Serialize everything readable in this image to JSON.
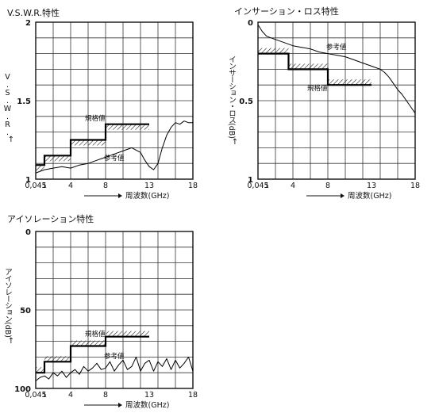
{
  "chart_data": [
    {
      "id": "vswr",
      "type": "line",
      "title": "V.S.W.R.特性",
      "ylabel": "V.S.W.R.",
      "xlabel": "周波数(GHz)",
      "x_ticks": [
        "0.045",
        "1",
        "4",
        "8",
        "13",
        "18"
      ],
      "y_ticks": [
        "2",
        "1.5",
        "1"
      ],
      "ylim": [
        1,
        2
      ],
      "xlim": [
        0.045,
        18
      ],
      "annotations": [
        "規格値",
        "参考値"
      ],
      "series": [
        {
          "name": "規格値",
          "x": [
            0.045,
            1,
            1,
            4,
            4,
            8,
            8,
            13
          ],
          "y": [
            1.09,
            1.09,
            1.15,
            1.15,
            1.25,
            1.25,
            1.35,
            1.35
          ]
        },
        {
          "name": "参考値",
          "x": [
            0.045,
            0.5,
            1,
            2,
            3,
            4,
            5,
            6,
            7,
            8,
            9,
            10,
            11,
            12,
            12.5,
            13,
            13.5,
            14,
            14.5,
            15,
            15.5,
            16,
            16.5,
            17,
            17.5,
            18
          ],
          "y": [
            1.04,
            1.05,
            1.06,
            1.07,
            1.08,
            1.07,
            1.09,
            1.1,
            1.12,
            1.14,
            1.16,
            1.18,
            1.2,
            1.17,
            1.12,
            1.08,
            1.06,
            1.1,
            1.2,
            1.28,
            1.33,
            1.36,
            1.35,
            1.37,
            1.36,
            1.36
          ]
        }
      ]
    },
    {
      "id": "insertion-loss",
      "type": "line",
      "title": "インサーション・ロス特性",
      "ylabel": "インサーション・ロス",
      "yunit": "(dB)",
      "xlabel": "周波数(GHz)",
      "x_ticks": [
        "0.045",
        "1",
        "4",
        "8",
        "13",
        "18"
      ],
      "y_ticks": [
        "0",
        "0.5",
        "1"
      ],
      "ylim": [
        0,
        1
      ],
      "xlim": [
        0.045,
        18
      ],
      "annotations": [
        "参考値",
        "規格値"
      ],
      "series": [
        {
          "name": "規格値",
          "x": [
            0.045,
            3.5,
            3.5,
            8,
            8,
            13
          ],
          "y": [
            0.2,
            0.2,
            0.3,
            0.3,
            0.4,
            0.4
          ]
        },
        {
          "name": "参考値",
          "x": [
            0.045,
            0.5,
            1,
            2,
            3,
            4,
            5,
            6,
            7,
            8,
            9,
            10,
            11,
            12,
            13,
            14,
            14.5,
            15,
            15.5,
            16,
            16.5,
            17,
            17.5,
            18
          ],
          "y": [
            0.02,
            0.06,
            0.09,
            0.11,
            0.13,
            0.15,
            0.16,
            0.17,
            0.19,
            0.2,
            0.21,
            0.22,
            0.24,
            0.26,
            0.28,
            0.3,
            0.32,
            0.35,
            0.39,
            0.43,
            0.46,
            0.5,
            0.54,
            0.58
          ]
        }
      ]
    },
    {
      "id": "isolation",
      "type": "line",
      "title": "アイソレーション特性",
      "ylabel": "アイソレーション",
      "yunit": "(dB)",
      "xlabel": "周波数(GHz)",
      "x_ticks": [
        "0.045",
        "1",
        "4",
        "8",
        "13",
        "18"
      ],
      "y_ticks": [
        "0",
        "50",
        "100"
      ],
      "ylim": [
        0,
        100
      ],
      "xlim": [
        0.045,
        18
      ],
      "annotations": [
        "規格値",
        "参考値"
      ],
      "series": [
        {
          "name": "規格値",
          "x": [
            0.045,
            1,
            1,
            4,
            4,
            8,
            8,
            13
          ],
          "y": [
            90,
            90,
            83,
            83,
            73,
            73,
            67,
            67
          ]
        },
        {
          "name": "参考値",
          "x": [
            0.045,
            0.5,
            1,
            1.5,
            2,
            2.5,
            3,
            3.5,
            4,
            4.5,
            5,
            5.5,
            6,
            6.5,
            7,
            7.5,
            8,
            8.5,
            9,
            9.5,
            10,
            10.5,
            11,
            11.5,
            12,
            12.5,
            13,
            13.5,
            14,
            14.5,
            15,
            15.5,
            16,
            16.5,
            17,
            17.5,
            18
          ],
          "y": [
            95,
            93,
            92,
            94,
            90,
            92,
            89,
            93,
            90,
            88,
            91,
            86,
            89,
            87,
            84,
            88,
            87,
            83,
            89,
            85,
            82,
            88,
            86,
            80,
            89,
            84,
            82,
            89,
            83,
            86,
            81,
            88,
            82,
            87,
            84,
            80,
            89
          ]
        }
      ]
    }
  ]
}
